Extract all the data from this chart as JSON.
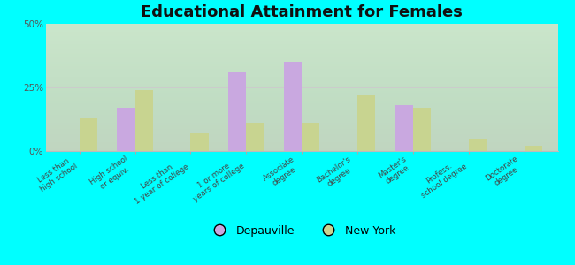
{
  "title": "Educational Attainment for Females",
  "categories": [
    "Less than\nhigh school",
    "High school\nor equiv.",
    "Less than\n1 year of college",
    "1 or more\nyears of college",
    "Associate\ndegree",
    "Bachelor's\ndegree",
    "Master's\ndegree",
    "Profess.\nschool degree",
    "Doctorate\ndegree"
  ],
  "depauville": [
    0,
    17,
    0,
    31,
    35,
    0,
    18,
    0,
    0
  ],
  "new_york": [
    13,
    24,
    7,
    11,
    11,
    22,
    17,
    5,
    2
  ],
  "depauville_color": "#c9a8e0",
  "new_york_color": "#c8d490",
  "background_color": "#00ffff",
  "bar_width": 0.32,
  "ylim": [
    0,
    50
  ],
  "yticks": [
    0,
    25,
    50
  ],
  "ytick_labels": [
    "0%",
    "25%",
    "50%"
  ],
  "legend_depauville": "Depauville",
  "legend_newyork": "New York",
  "title_fontsize": 13,
  "tick_fontsize": 6.2
}
